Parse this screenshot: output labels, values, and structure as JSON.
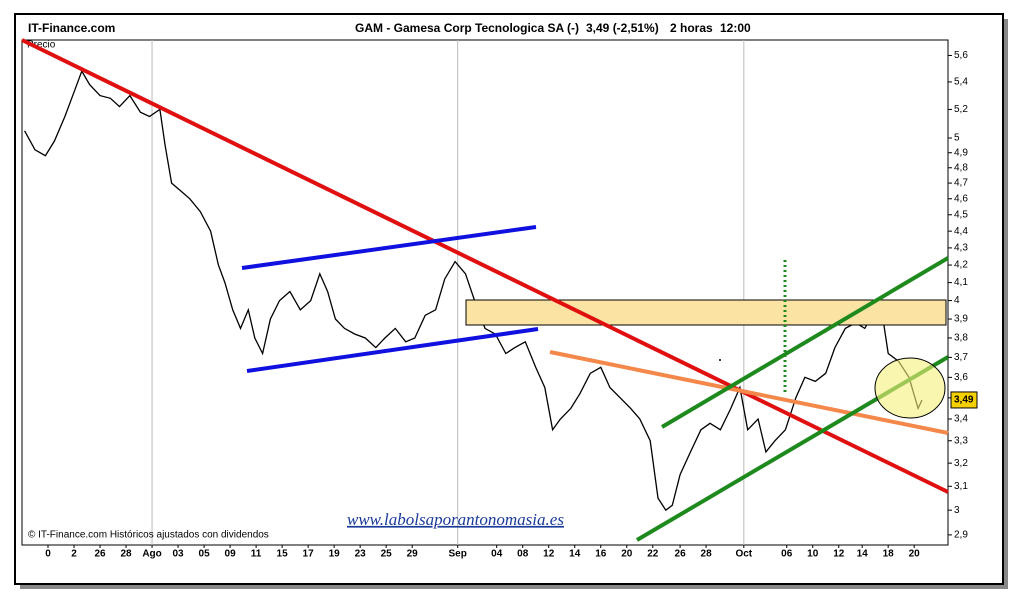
{
  "chart_data": {
    "type": "line",
    "site": "IT-Finance.com",
    "title": "GAM - Gamesa Corp Tecnologica SA (-)",
    "last_quote": "3,49 (-2,51%)",
    "interval": "2 horas",
    "time": "12:00",
    "y_label": "Precio",
    "footer": "© IT-Finance.com  Históricos ajustados con dividendos",
    "watermark": "www.labolsaporantonomasia.es",
    "last_value_label": "3,49",
    "log_y": true,
    "color": "#000000",
    "x": [
      -1.8,
      -1.0,
      -0.2,
      0.5,
      1.3,
      2.1,
      2.6,
      3.2,
      4.0,
      4.8,
      5.5,
      6.3,
      7.1,
      7.8,
      8.6,
      9.0,
      9.5,
      10.2,
      10.9,
      11.7,
      12.5,
      13.1,
      13.6,
      14.2,
      14.8,
      15.4,
      15.9,
      16.5,
      17.1,
      17.8,
      18.6,
      19.4,
      20.2,
      20.9,
      21.5,
      22.1,
      22.8,
      23.6,
      24.4,
      25.2,
      25.9,
      26.7,
      27.5,
      28.2,
      29.0,
      29.8,
      30.5,
      31.3,
      32.1,
      32.8,
      33.6,
      34.4,
      35.2,
      35.9,
      36.7,
      37.5,
      38.2,
      38.8,
      39.4,
      40.2,
      40.9,
      41.7,
      42.5,
      43.2,
      44.0,
      44.8,
      45.5,
      46.3,
      46.9,
      47.5,
      48.0,
      48.6,
      49.4,
      50.2,
      50.9,
      51.7,
      52.5,
      53.2,
      53.8,
      54.6,
      55.2,
      55.9,
      56.7,
      57.5,
      58.2,
      59.0,
      59.8,
      60.5,
      61.3,
      62.1,
      62.8,
      63.6,
      64.2,
      64.6,
      65.4,
      66.2,
      66.9,
      67.2
    ],
    "values": [
      5.05,
      4.92,
      4.88,
      4.98,
      5.15,
      5.35,
      5.48,
      5.38,
      5.3,
      5.28,
      5.22,
      5.3,
      5.18,
      5.15,
      5.2,
      4.95,
      4.7,
      4.65,
      4.6,
      4.52,
      4.4,
      4.2,
      4.1,
      3.95,
      3.85,
      3.95,
      3.8,
      3.72,
      3.9,
      4.0,
      4.05,
      3.95,
      4.0,
      4.15,
      4.05,
      3.9,
      3.85,
      3.82,
      3.8,
      3.75,
      3.8,
      3.85,
      3.78,
      3.8,
      3.92,
      3.95,
      4.12,
      4.22,
      4.15,
      4.0,
      3.85,
      3.82,
      3.72,
      3.75,
      3.78,
      3.65,
      3.55,
      3.35,
      3.4,
      3.45,
      3.52,
      3.62,
      3.65,
      3.55,
      3.5,
      3.45,
      3.4,
      3.3,
      3.05,
      3.0,
      3.02,
      3.15,
      3.25,
      3.35,
      3.38,
      3.35,
      3.45,
      3.55,
      3.35,
      3.4,
      3.25,
      3.3,
      3.35,
      3.5,
      3.6,
      3.58,
      3.62,
      3.75,
      3.85,
      3.88,
      3.85,
      3.95,
      3.9,
      3.72,
      3.68,
      3.6,
      3.45,
      3.49
    ],
    "xlim": [
      -2,
      69.2
    ],
    "xticks": [
      0,
      2,
      {
        "value": 4,
        "label": "26"
      },
      {
        "value": 6,
        "label": "28"
      },
      {
        "value": 8,
        "label": "Ago"
      },
      {
        "value": 10,
        "label": "03"
      },
      {
        "value": 12,
        "label": "05"
      },
      {
        "value": 14,
        "label": "09"
      },
      {
        "value": 16,
        "label": "11"
      },
      {
        "value": 18,
        "label": "15"
      },
      {
        "value": 20,
        "label": "17"
      },
      {
        "value": 22,
        "label": "19"
      },
      {
        "value": 24,
        "label": "23"
      },
      {
        "value": 26,
        "label": "25"
      },
      {
        "value": 28,
        "label": "29"
      },
      {
        "value": 31.5,
        "label": "Sep"
      },
      {
        "value": 34.5,
        "label": "04"
      },
      {
        "value": 36.5,
        "label": "08"
      },
      {
        "value": 38.5,
        "label": "12"
      },
      {
        "value": 40.5,
        "label": "14"
      },
      {
        "value": 42.5,
        "label": "16"
      },
      {
        "value": 44.5,
        "label": "20"
      },
      {
        "value": 46.5,
        "label": "22"
      },
      {
        "value": 48.6,
        "label": "26"
      },
      {
        "value": 50.6,
        "label": "28"
      },
      {
        "value": 53.5,
        "label": "Oct"
      },
      {
        "value": 56.8,
        "label": "06"
      },
      {
        "value": 58.8,
        "label": "10"
      },
      {
        "value": 60.8,
        "label": "12"
      },
      {
        "value": 62.6,
        "label": "14"
      },
      {
        "value": 64.6,
        "label": "18"
      },
      {
        "value": 66.6,
        "label": "20"
      }
    ],
    "month_ticks": [
      "Ago",
      "Sep",
      "Oct"
    ],
    "ylim": [
      2.86,
      5.72
    ],
    "yticks": [
      {
        "value": 5.6,
        "label": "5,6"
      },
      {
        "value": 5.4,
        "label": "5,4"
      },
      {
        "value": 5.2,
        "label": "5,2"
      },
      5,
      {
        "value": 4.9,
        "label": "4,9"
      },
      {
        "value": 4.8,
        "label": "4,8"
      },
      {
        "value": 4.7,
        "label": "4,7"
      },
      {
        "value": 4.6,
        "label": "4,6"
      },
      {
        "value": 4.5,
        "label": "4,5"
      },
      {
        "value": 4.4,
        "label": "4,4"
      },
      {
        "value": 4.3,
        "label": "4,3"
      },
      {
        "value": 4.2,
        "label": "4,2"
      },
      {
        "value": 4.1,
        "label": "4,1"
      },
      4,
      {
        "value": 3.9,
        "label": "3,9"
      },
      {
        "value": 3.8,
        "label": "3,8"
      },
      {
        "value": 3.7,
        "label": "3,7"
      },
      {
        "value": 3.6,
        "label": "3,6"
      },
      {
        "value": 3.5,
        "label": "3,5"
      },
      {
        "value": 3.4,
        "label": "3,4"
      },
      {
        "value": 3.3,
        "label": "3,3"
      },
      {
        "value": 3.2,
        "label": "3,2"
      },
      {
        "value": 3.1,
        "label": "3,1"
      },
      3,
      {
        "value": 2.9,
        "label": "2,9"
      }
    ],
    "last_value": 3.49
  }
}
